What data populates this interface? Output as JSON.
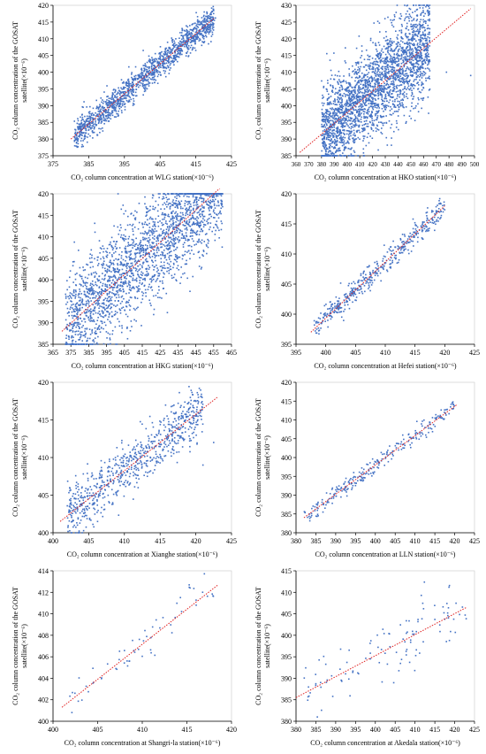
{
  "colors": {
    "points": "#4472C4",
    "fit": "#E02020",
    "axis": "#000000"
  },
  "chart_data": [
    {
      "type": "scatter",
      "xlabel": "CO₂ column concentration at WLG station(×10⁻⁶)",
      "ylabel_lines": [
        "CO₂ column concentration of the GOSAT",
        "satellite(×10⁻⁶)"
      ],
      "xlim": [
        375,
        425
      ],
      "ylim": [
        375,
        420
      ],
      "xticks": [
        375,
        385,
        395,
        405,
        415,
        425
      ],
      "yticks": [
        375,
        380,
        385,
        390,
        395,
        400,
        405,
        410,
        415,
        420
      ],
      "fit_line": [
        [
          380,
          380
        ],
        [
          420,
          416
        ]
      ],
      "cloud": {
        "n": 1400,
        "x_range": [
          381,
          420
        ],
        "spread": 2.2,
        "seed": 11,
        "extra": [
          [
            420.2,
            415.5
          ],
          [
            420.5,
            416.2
          ],
          [
            419.8,
            415.8
          ]
        ]
      }
    },
    {
      "type": "scatter",
      "xlabel": "CO₂ column concentration at HKO station(×10⁻⁶)",
      "ylabel_lines": [
        "CO₂ column concentration of the GOSAT",
        "satellite(×10⁻⁶)"
      ],
      "xlim": [
        360,
        500
      ],
      "ylim": [
        385,
        430
      ],
      "xticks": [
        360,
        370,
        380,
        390,
        400,
        410,
        420,
        430,
        440,
        450,
        460,
        470,
        480,
        490,
        500
      ],
      "yticks": [
        385,
        390,
        395,
        400,
        405,
        410,
        415,
        420,
        425,
        430
      ],
      "fit_line": [
        [
          363,
          386
        ],
        [
          497,
          429
        ]
      ],
      "cloud": {
        "n": 2600,
        "x_range": [
          380,
          465
        ],
        "spread": 7.0,
        "seed": 23,
        "extra": [
          [
            497,
            409
          ],
          [
            478,
            410
          ]
        ]
      }
    },
    {
      "type": "scatter",
      "xlabel": "CO₂ column concentration at HKG station(×10⁻⁶)",
      "ylabel_lines": [
        "CO₂ column concentration of the GOSAT",
        "satellite(×10⁻⁶)"
      ],
      "xlim": [
        365,
        465
      ],
      "ylim": [
        385,
        420
      ],
      "xticks": [
        365,
        375,
        385,
        395,
        405,
        415,
        425,
        435,
        445,
        455,
        465
      ],
      "yticks": [
        385,
        390,
        395,
        400,
        405,
        410,
        415,
        420
      ],
      "fit_line": [
        [
          370,
          388
        ],
        [
          463,
          423
        ]
      ],
      "cloud": {
        "n": 2200,
        "x_range": [
          372,
          460
        ],
        "spread": 6.0,
        "seed": 37,
        "extra": [
          [
            458,
            411.5
          ],
          [
            460,
            417
          ]
        ]
      }
    },
    {
      "type": "scatter",
      "xlabel": "CO₂ column concentration at Hefei station(×10⁻⁶)",
      "ylabel_lines": [
        "CO₂ column concentration of the GOSAT",
        "satellite(×10⁻⁶)"
      ],
      "xlim": [
        395,
        425
      ],
      "ylim": [
        395,
        420
      ],
      "xticks": [
        395,
        400,
        405,
        410,
        415,
        420,
        425
      ],
      "yticks": [
        395,
        400,
        405,
        410,
        415,
        420
      ],
      "fit_line": [
        [
          397.5,
          397
        ],
        [
          420,
          418
        ]
      ],
      "cloud": {
        "n": 450,
        "x_range": [
          398,
          420
        ],
        "spread": 1.0,
        "seed": 51,
        "extra": []
      }
    },
    {
      "type": "scatter",
      "xlabel": "CO₂ column concentration at Xianghe station(×10⁻⁶)",
      "ylabel_lines": [
        "CO₂ column concentration of the GOSAT",
        "satellite(×10⁻⁶)"
      ],
      "xlim": [
        400,
        425
      ],
      "ylim": [
        400,
        420
      ],
      "xticks": [
        400,
        405,
        410,
        415,
        420,
        425
      ],
      "yticks": [
        400,
        405,
        410,
        415,
        420
      ],
      "fit_line": [
        [
          401,
          401.5
        ],
        [
          423,
          418
        ]
      ],
      "cloud": {
        "n": 750,
        "x_range": [
          402,
          421
        ],
        "spread": 1.7,
        "seed": 67,
        "extra": [
          [
            422.5,
            412
          ],
          [
            421,
            409
          ]
        ]
      }
    },
    {
      "type": "scatter",
      "xlabel": "CO₂ column concentration at LLN station(×10⁻⁶)",
      "ylabel_lines": [
        "CO₂ column concentration of the GOSAT",
        "satellite(×10⁻⁶)"
      ],
      "xlim": [
        380,
        425
      ],
      "ylim": [
        380,
        420
      ],
      "xticks": [
        380,
        385,
        390,
        395,
        400,
        405,
        410,
        415,
        420,
        425
      ],
      "yticks": [
        380,
        385,
        390,
        395,
        400,
        405,
        410,
        415,
        420
      ],
      "fit_line": [
        [
          382,
          384
        ],
        [
          420.5,
          414
        ]
      ],
      "cloud": {
        "n": 260,
        "x_range": [
          382,
          420
        ],
        "spread": 1.1,
        "seed": 79,
        "extra": []
      }
    },
    {
      "type": "scatter",
      "xlabel": "CO₂ column concentration at Shangri-la station(×10⁻⁶)",
      "ylabel_lines": [
        "CO₂ column concentration of the GOSAT",
        "satellite(×10⁻⁶)"
      ],
      "xlim": [
        400,
        420
      ],
      "ylim": [
        400,
        414
      ],
      "xticks": [
        400,
        405,
        410,
        415,
        420
      ],
      "yticks": [
        400,
        402,
        404,
        406,
        408,
        410,
        412,
        414
      ],
      "fit_line": [
        [
          401,
          401.3
        ],
        [
          418.5,
          412.7
        ]
      ],
      "cloud": {
        "n": 60,
        "x_range": [
          401.5,
          418.5
        ],
        "spread": 0.9,
        "seed": 91,
        "extra": []
      }
    },
    {
      "type": "scatter",
      "xlabel": "CO₂ column concentration at Akedala station(×10⁻⁶)",
      "ylabel_lines": [
        "CO₂ column concentration of the GOSAT",
        "satellite(×10⁻⁶)"
      ],
      "xlim": [
        380,
        425
      ],
      "ylim": [
        380,
        415
      ],
      "xticks": [
        380,
        385,
        390,
        395,
        400,
        405,
        410,
        415,
        420,
        425
      ],
      "yticks": [
        380,
        385,
        390,
        395,
        400,
        405,
        410,
        415
      ],
      "fit_line": [
        [
          380,
          385.5
        ],
        [
          423,
          406.5
        ]
      ],
      "cloud": {
        "n": 110,
        "x_range": [
          382,
          423
        ],
        "spread": 4.0,
        "seed": 103,
        "extra": []
      }
    }
  ]
}
